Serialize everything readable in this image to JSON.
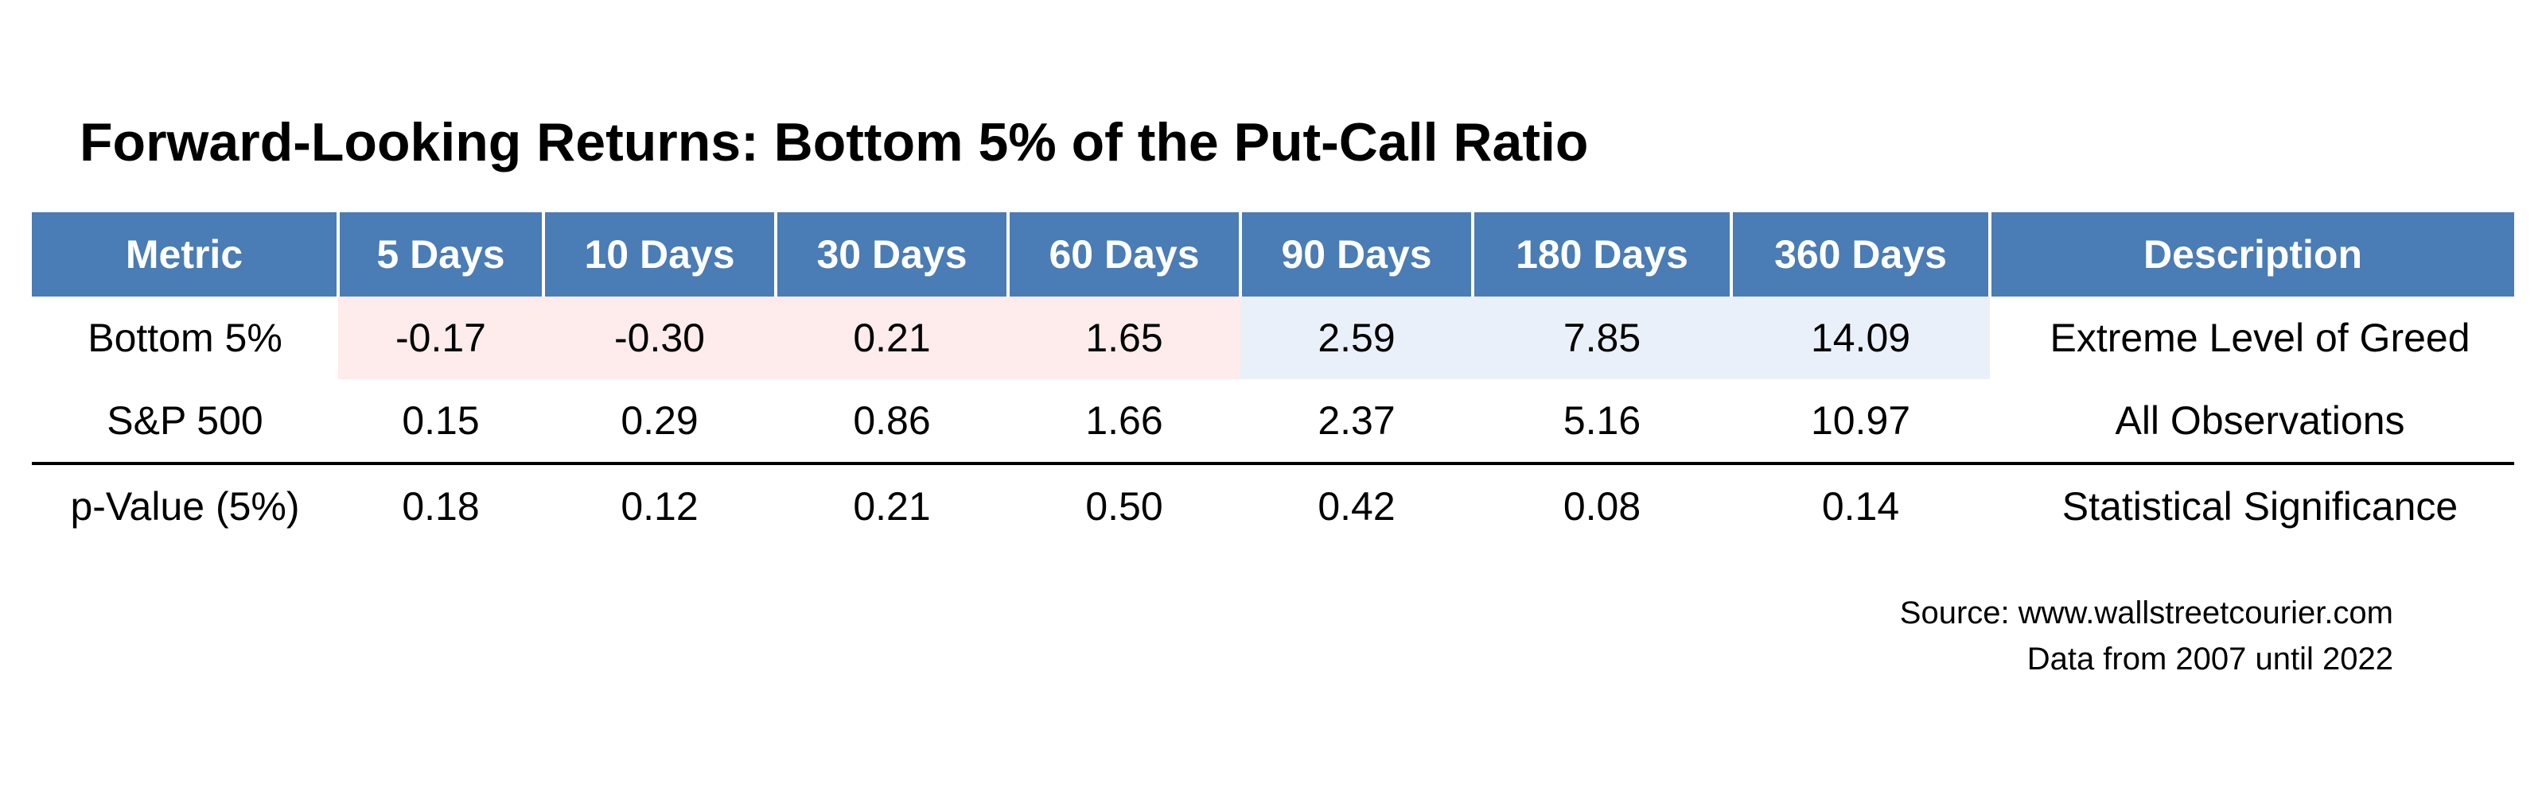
{
  "chart_data": {
    "type": "table",
    "title": "Forward-Looking Returns: Bottom 5% of the Put-Call Ratio",
    "columns": [
      "Metric",
      "5 Days",
      "10 Days",
      "30 Days",
      "60 Days",
      "90 Days",
      "180 Days",
      "360 Days",
      "Description"
    ],
    "rows": [
      {
        "metric": "Bottom 5%",
        "values": [
          "-0.17",
          "-0.30",
          "0.21",
          "1.65",
          "2.59",
          "7.85",
          "14.09"
        ],
        "description": "Extreme Level of Greed",
        "cell_colors": [
          "#fdeceb",
          "#fdeceb",
          "#fdeceb",
          "#fdeceb",
          "#eaf0f9",
          "#eaf0f9",
          "#eaf0f9"
        ]
      },
      {
        "metric": "S&P 500",
        "values": [
          "0.15",
          "0.29",
          "0.86",
          "1.66",
          "2.37",
          "5.16",
          "10.97"
        ],
        "description": "All Observations"
      },
      {
        "metric": "p-Value (5%)",
        "values": [
          "0.18",
          "0.12",
          "0.21",
          "0.50",
          "0.42",
          "0.08",
          "0.14"
        ],
        "description": "Statistical Significance"
      }
    ],
    "header_color": "#4a7cb5",
    "header_text_color": "#ffffff"
  },
  "footer": {
    "source": "Source: www.wallstreetcourier.com",
    "period": "Data from 2007 until 2022"
  }
}
